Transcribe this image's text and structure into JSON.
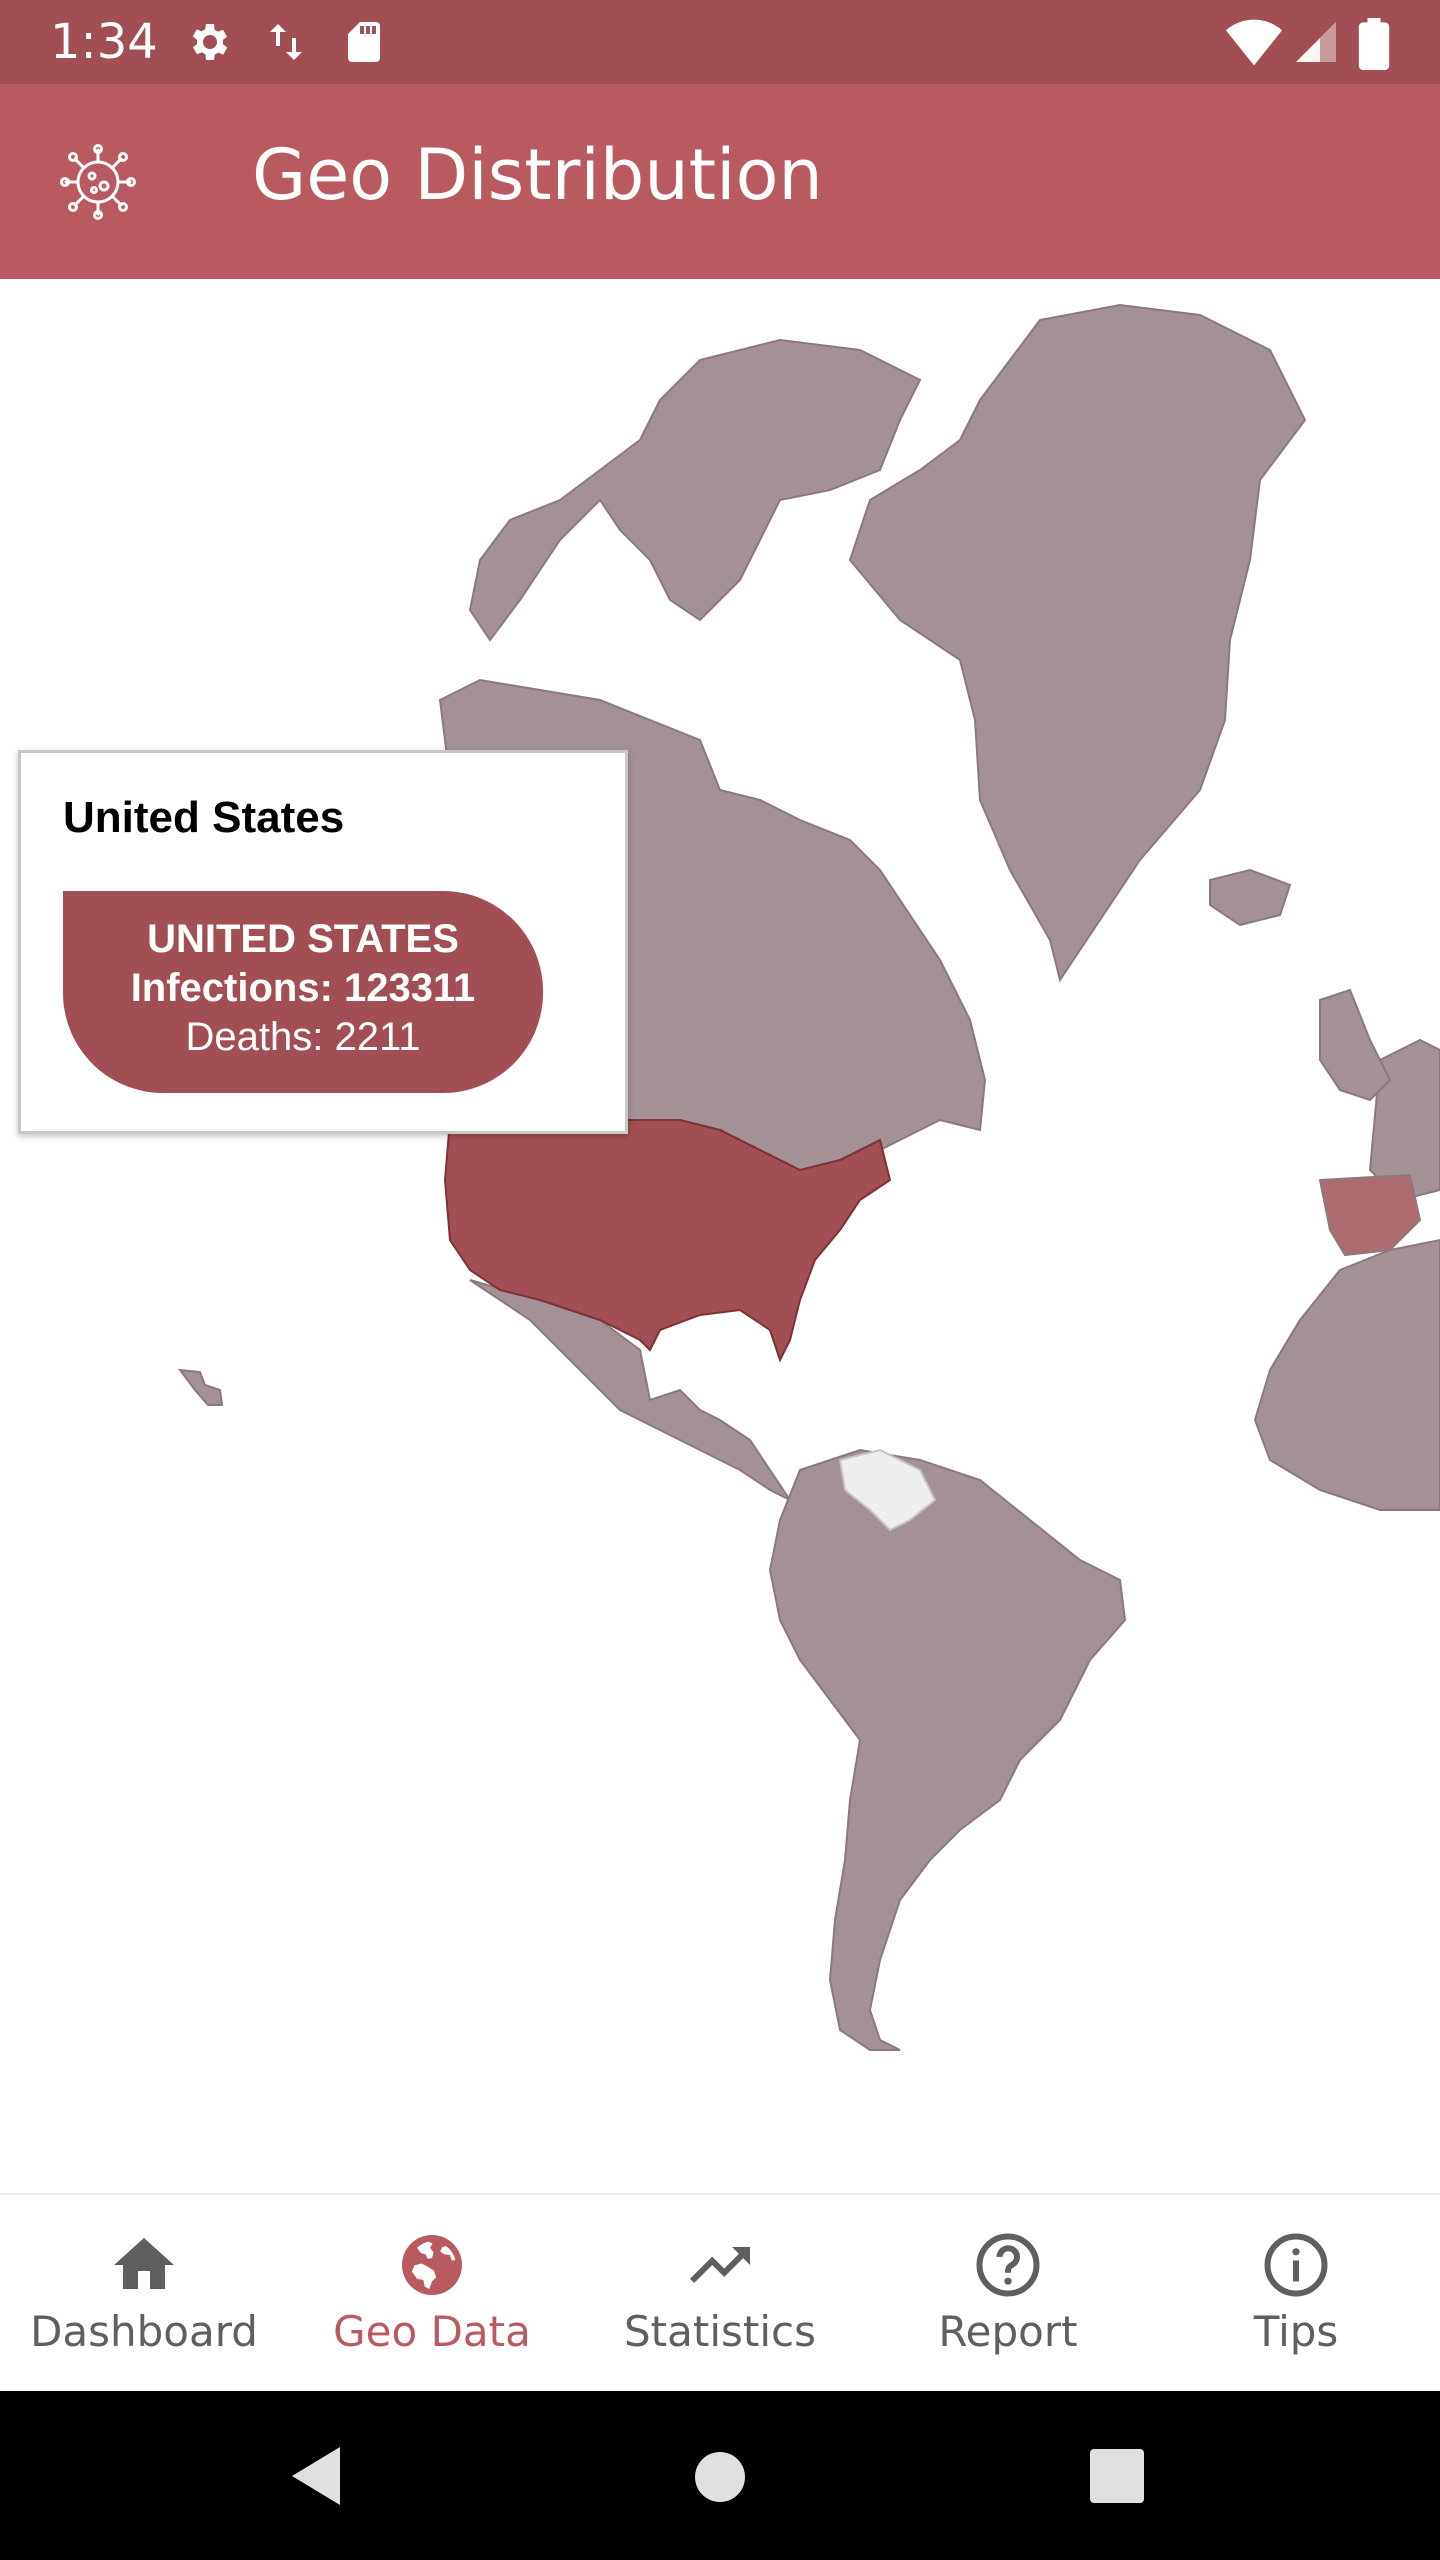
{
  "status_bar": {
    "time": "1:34",
    "icons": [
      "settings-icon",
      "data-transfer-icon",
      "sd-card-icon",
      "wifi-icon",
      "signal-icon",
      "battery-icon"
    ]
  },
  "app_bar": {
    "title": "Geo Distribution",
    "logo_icon": "virus-icon",
    "background": "#b85a5f"
  },
  "map": {
    "selected_country": "United States",
    "highlight_color": "#a14f55",
    "default_color": "#a39195",
    "no_data_color": "#eeeeee"
  },
  "tooltip": {
    "title": "United States",
    "country_caps": "UNITED STATES",
    "infections": "Infections: 123311",
    "deaths": "Deaths: 2211"
  },
  "bottom_nav": {
    "items": [
      {
        "label": "Dashboard",
        "icon": "home-icon",
        "active": false
      },
      {
        "label": "Geo Data",
        "icon": "globe-icon",
        "active": true
      },
      {
        "label": "Statistics",
        "icon": "trending-up-icon",
        "active": false
      },
      {
        "label": "Report",
        "icon": "help-circle-icon",
        "active": false
      },
      {
        "label": "Tips",
        "icon": "info-icon",
        "active": false
      }
    ],
    "active_color": "#b85a5f",
    "inactive_color": "#5f5f5f"
  },
  "system_nav": {
    "buttons": [
      "back-icon",
      "home-circle-icon",
      "recents-icon"
    ]
  }
}
